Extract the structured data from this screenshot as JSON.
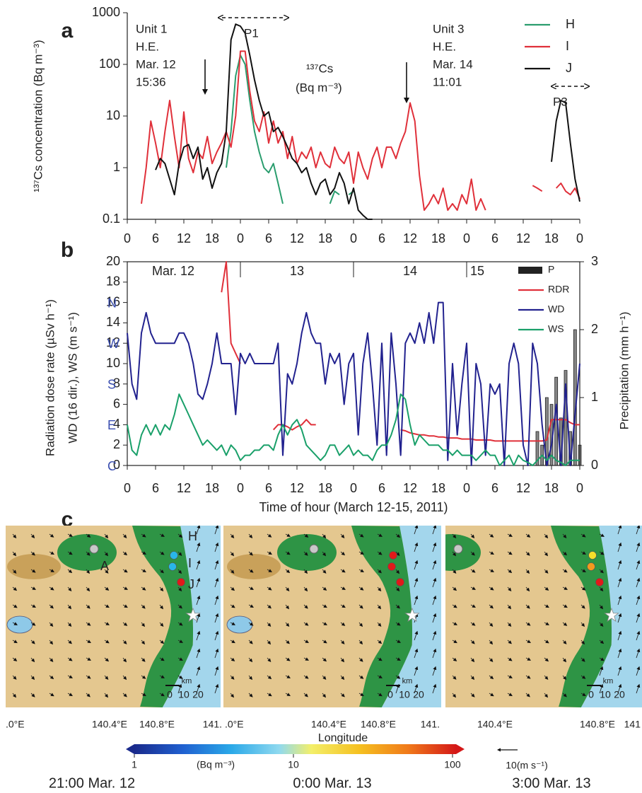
{
  "chart_data": [
    {
      "type": "line",
      "panel_label": "a",
      "y_label": "¹³⁷Cs concentration (Bq m⁻³)",
      "y_scale": "log",
      "frame": false,
      "ylim": [
        0.1,
        1000
      ],
      "yticks": [
        0.1,
        1,
        10,
        100,
        1000
      ],
      "xlim": [
        0,
        96
      ],
      "xticks": [
        0,
        6,
        12,
        18,
        {
          "value": 24,
          "label": "0"
        },
        {
          "value": 30,
          "label": "6"
        },
        {
          "value": 36,
          "label": "12"
        },
        {
          "value": 42,
          "label": "18"
        },
        {
          "value": 48,
          "label": "0"
        },
        {
          "value": 54,
          "label": "6"
        },
        {
          "value": 60,
          "label": "12"
        },
        {
          "value": 66,
          "label": "18"
        },
        {
          "value": 72,
          "label": "0"
        },
        {
          "value": 78,
          "label": "6"
        },
        {
          "value": 84,
          "label": "12"
        },
        {
          "value": 90,
          "label": "18"
        },
        {
          "value": 96,
          "label": "0"
        }
      ],
      "x": [
        0,
        1,
        2,
        3,
        4,
        5,
        6,
        7,
        8,
        9,
        10,
        11,
        12,
        13,
        14,
        15,
        16,
        17,
        18,
        19,
        20,
        21,
        22,
        23,
        24,
        25,
        26,
        27,
        28,
        29,
        30,
        31,
        32,
        33,
        34,
        35,
        36,
        37,
        38,
        39,
        40,
        41,
        42,
        43,
        44,
        45,
        46,
        47,
        48,
        49,
        50,
        51,
        52,
        53,
        54,
        55,
        56,
        57,
        58,
        59,
        60,
        61,
        62,
        63,
        64,
        65,
        66,
        67,
        68,
        69,
        70,
        71,
        72,
        73,
        74,
        75,
        76,
        77,
        78,
        79,
        80,
        81,
        82,
        83,
        84,
        85,
        86,
        87,
        88,
        89,
        90,
        91,
        92,
        93,
        94,
        95,
        96
      ],
      "legend": "upper right",
      "annotations": [
        "Unit 1",
        "H.E.",
        "Mar. 12",
        "15:36",
        "¹³⁷Cs",
        "(Bq m⁻³)",
        "Unit 3",
        "H.E.",
        "Mar. 14",
        "11:01",
        "P1",
        "P3"
      ],
      "series": [
        {
          "name": "H",
          "color": "#2a9d6e",
          "values": [
            null,
            null,
            null,
            null,
            null,
            null,
            null,
            null,
            null,
            null,
            null,
            null,
            null,
            null,
            null,
            null,
            null,
            null,
            null,
            null,
            null,
            1,
            5,
            60,
            150,
            100,
            20,
            5,
            2,
            1,
            0.8,
            1.2,
            0.5,
            0.2,
            null,
            null,
            null,
            null,
            null,
            null,
            null,
            null,
            null,
            0.2,
            0.35,
            0.3,
            null,
            0.3,
            0.35,
            null,
            null,
            null,
            null,
            null,
            null,
            null,
            null,
            null,
            null,
            null,
            null,
            null,
            null,
            null,
            null,
            null,
            null,
            null,
            null,
            null,
            null,
            null,
            null,
            null,
            null,
            null,
            null,
            null,
            null,
            null,
            null,
            null,
            null,
            null,
            null,
            null,
            null,
            null,
            null,
            null,
            null,
            null,
            null,
            null,
            null,
            null,
            null
          ]
        },
        {
          "name": "I",
          "color": "#e0303a",
          "values": [
            null,
            null,
            null,
            0.2,
            1,
            8,
            3,
            1,
            5,
            20,
            4,
            1,
            12,
            1.5,
            0.8,
            2,
            1.5,
            4,
            1.2,
            2,
            3,
            5,
            2.5,
            10,
            180,
            180,
            30,
            8,
            5,
            12,
            3,
            8,
            3,
            5,
            1.5,
            4,
            1.2,
            2,
            1.5,
            2.5,
            1,
            2,
            1.2,
            1,
            2.5,
            1.5,
            1.2,
            2,
            0.5,
            2,
            1,
            0.6,
            1.5,
            2.5,
            1,
            2.5,
            2.5,
            1.5,
            3,
            5,
            18,
            8,
            0.7,
            0.15,
            0.2,
            0.3,
            0.2,
            0.4,
            0.15,
            0.2,
            0.15,
            0.3,
            0.2,
            0.6,
            0.15,
            0.25,
            0.15,
            null,
            null,
            null,
            null,
            null,
            null,
            null,
            null,
            null,
            0.45,
            0.4,
            0.35,
            null,
            null,
            0.4,
            0.5,
            0.35,
            0.3,
            0.4,
            0.25
          ]
        },
        {
          "name": "J",
          "color": "#111111",
          "values": [
            null,
            null,
            null,
            null,
            null,
            null,
            0.9,
            1.5,
            1.2,
            0.6,
            0.3,
            1.2,
            2.5,
            2.8,
            1.5,
            2.5,
            0.6,
            1,
            0.4,
            0.8,
            1.2,
            5,
            300,
            600,
            550,
            400,
            150,
            50,
            20,
            10,
            12,
            5,
            6,
            4,
            2.5,
            1.5,
            1.2,
            0.8,
            1,
            0.5,
            0.3,
            0.5,
            0.6,
            0.3,
            0.4,
            0.8,
            0.5,
            0.2,
            0.4,
            0.15,
            0.12,
            0.1,
            0.1,
            null,
            null,
            null,
            null,
            null,
            null,
            null,
            null,
            null,
            null,
            null,
            null,
            null,
            null,
            null,
            null,
            null,
            null,
            null,
            null,
            null,
            null,
            null,
            null,
            null,
            null,
            null,
            null,
            null,
            null,
            null,
            null,
            null,
            null,
            null,
            null,
            null,
            1.3,
            8,
            20,
            18,
            3,
            0.6,
            0.22
          ]
        }
      ]
    },
    {
      "type": "line",
      "panel_label": "b",
      "frame": true,
      "y_label_lines": [
        "Radiation dose rate (µSv h⁻¹)",
        "WD (16 dir.), WS (m s⁻¹)"
      ],
      "y2_label": "Precipitation (mm h⁻¹)",
      "x_label": "Time of hour (March 12-15, 2011)",
      "ylim": [
        0,
        20
      ],
      "yticks": [
        0,
        2,
        4,
        6,
        8,
        10,
        12,
        14,
        16,
        18,
        20
      ],
      "y2lim": [
        0,
        3
      ],
      "y2ticks": [
        0,
        1,
        2,
        3
      ],
      "direction_labels": [
        {
          "value": 16,
          "label": "N"
        },
        {
          "value": 12,
          "label": "W"
        },
        {
          "value": 8,
          "label": "S"
        },
        {
          "value": 4,
          "label": "E"
        },
        {
          "value": 0,
          "label": "C"
        }
      ],
      "day_labels": [
        "Mar. 12",
        "13",
        "14",
        "15"
      ],
      "xlim": [
        0,
        96
      ],
      "xticks": [
        0,
        6,
        12,
        18,
        {
          "value": 24,
          "label": "0"
        },
        {
          "value": 30,
          "label": "6"
        },
        {
          "value": 36,
          "label": "12"
        },
        {
          "value": 42,
          "label": "18"
        },
        {
          "value": 48,
          "label": "0"
        },
        {
          "value": 54,
          "label": "6"
        },
        {
          "value": 60,
          "label": "12"
        },
        {
          "value": 66,
          "label": "18"
        },
        {
          "value": 72,
          "label": "0"
        },
        {
          "value": 78,
          "label": "6"
        },
        {
          "value": 84,
          "label": "12"
        },
        {
          "value": 90,
          "label": "18"
        },
        {
          "value": 96,
          "label": "0"
        }
      ],
      "x": [
        0,
        1,
        2,
        3,
        4,
        5,
        6,
        7,
        8,
        9,
        10,
        11,
        12,
        13,
        14,
        15,
        16,
        17,
        18,
        19,
        20,
        21,
        22,
        23,
        24,
        25,
        26,
        27,
        28,
        29,
        30,
        31,
        32,
        33,
        34,
        35,
        36,
        37,
        38,
        39,
        40,
        41,
        42,
        43,
        44,
        45,
        46,
        47,
        48,
        49,
        50,
        51,
        52,
        53,
        54,
        55,
        56,
        57,
        58,
        59,
        60,
        61,
        62,
        63,
        64,
        65,
        66,
        67,
        68,
        69,
        70,
        71,
        72,
        73,
        74,
        75,
        76,
        77,
        78,
        79,
        80,
        81,
        82,
        83,
        84,
        85,
        86,
        87,
        88,
        89,
        90,
        91,
        92,
        93,
        94,
        95,
        96
      ],
      "legend": "upper right",
      "series": [
        {
          "name": "P",
          "type": "bar",
          "axis": "y2",
          "color": "#222222",
          "values": [
            null,
            null,
            null,
            null,
            null,
            null,
            null,
            null,
            null,
            null,
            null,
            null,
            null,
            null,
            null,
            null,
            null,
            null,
            null,
            null,
            null,
            null,
            null,
            null,
            null,
            null,
            null,
            null,
            null,
            null,
            null,
            null,
            null,
            null,
            null,
            null,
            null,
            null,
            null,
            null,
            null,
            null,
            null,
            null,
            null,
            null,
            null,
            null,
            null,
            null,
            null,
            null,
            null,
            null,
            null,
            null,
            null,
            null,
            null,
            null,
            null,
            null,
            null,
            null,
            null,
            null,
            null,
            null,
            null,
            null,
            null,
            null,
            null,
            null,
            null,
            null,
            null,
            null,
            null,
            null,
            null,
            null,
            null,
            null,
            null,
            null,
            null,
            0.5,
            0.3,
            1,
            0.9,
            1.3,
            0.7,
            1.4,
            0.5,
            2,
            0.3
          ]
        },
        {
          "name": "RDR",
          "color": "#e0303a",
          "values": [
            null,
            null,
            null,
            null,
            null,
            null,
            null,
            null,
            null,
            null,
            null,
            null,
            null,
            null,
            null,
            null,
            null,
            null,
            null,
            null,
            17,
            20,
            12,
            11,
            10,
            null,
            null,
            null,
            null,
            null,
            null,
            3.5,
            4,
            4,
            3.8,
            3.5,
            3.8,
            4,
            4.5,
            4,
            4,
            null,
            null,
            null,
            null,
            null,
            null,
            null,
            null,
            null,
            null,
            null,
            null,
            null,
            null,
            null,
            null,
            null,
            3.5,
            3.4,
            3.2,
            3.1,
            3,
            3,
            2.9,
            2.9,
            2.8,
            2.8,
            2.7,
            2.7,
            2.7,
            2.6,
            2.6,
            2.6,
            2.5,
            2.5,
            2.5,
            2.5,
            2.4,
            2.4,
            2.4,
            2.4,
            2.4,
            2.4,
            2.4,
            2.4,
            2.4,
            2.4,
            2.4,
            2.5,
            4.5,
            4.5,
            4.5,
            4.5,
            4.2,
            4,
            4
          ]
        },
        {
          "name": "WD",
          "color": "#22228f",
          "values": [
            13,
            8,
            6.5,
            13,
            15,
            13,
            12,
            12,
            12,
            12,
            12,
            13,
            13,
            12,
            10,
            7,
            6.5,
            8,
            10,
            13,
            10,
            10,
            10,
            5,
            11,
            10,
            11,
            10,
            10,
            10,
            10,
            10,
            12,
            1,
            9,
            8,
            10,
            13,
            15,
            13,
            12,
            12,
            8,
            11,
            10,
            11,
            6,
            10,
            11,
            3,
            10,
            13,
            8,
            2,
            12,
            1,
            13,
            8,
            1,
            12,
            13,
            12,
            14,
            12,
            15,
            12,
            16,
            16,
            0.5,
            10,
            3,
            8,
            12,
            0,
            10,
            8,
            1,
            8,
            7,
            8,
            0,
            10,
            12,
            10,
            2,
            0,
            12,
            10,
            4,
            0,
            2,
            6,
            0,
            8,
            0,
            5,
            10
          ]
        },
        {
          "name": "WS",
          "color": "#1aa06a",
          "values": [
            4,
            1.5,
            1,
            3,
            4,
            3,
            4,
            3,
            4,
            3.5,
            5,
            7,
            6,
            5,
            4,
            3,
            2,
            2.5,
            2,
            1.5,
            2,
            1,
            2,
            1.5,
            0.5,
            1,
            1,
            1.5,
            1.5,
            2,
            2,
            1.5,
            3,
            4,
            3,
            4,
            4.5,
            3.5,
            2,
            1.5,
            1,
            0.5,
            1,
            2,
            2,
            1,
            1.5,
            2,
            1,
            1.5,
            1,
            1,
            0.5,
            1.5,
            2,
            2,
            3,
            4.5,
            7,
            6.5,
            4,
            2,
            3,
            2.5,
            2,
            2,
            2,
            1.5,
            1.5,
            1,
            1.5,
            1,
            1,
            1,
            0.5,
            1,
            1.5,
            1,
            1,
            0,
            0.5,
            1,
            0,
            1,
            0.5,
            0.3,
            0,
            0.5,
            1,
            0.5,
            1,
            0.5,
            0.3,
            0,
            0.5,
            0.5,
            0.5
          ]
        }
      ]
    }
  ],
  "maps": {
    "panel_label": "c",
    "station_labels": [
      "H",
      "I",
      "J",
      "A"
    ],
    "x_label": "Longitude",
    "scale_label": "km",
    "scale_ticks": [
      0,
      10,
      20
    ],
    "colorbar": {
      "scale": "log",
      "ticks": [
        1,
        10,
        100
      ],
      "unit": "(Bq m⁻³)"
    },
    "wind_reference": "10(m s⁻¹)",
    "panels": [
      {
        "time": "21:00 Mar. 12",
        "lon_labels": [
          ".0°E",
          "140.4°E",
          "140.8°E",
          "141."
        ],
        "station_colors": [
          "#29b6e8",
          "#29b6e8",
          "#e01a1a"
        ]
      },
      {
        "time": "0:00 Mar. 13",
        "lon_labels": [
          ".0°E",
          "140.4°E",
          "140.8°E",
          "141."
        ],
        "station_colors": [
          "#e01a1a",
          "#e01a1a",
          "#e01a1a"
        ]
      },
      {
        "time": "3:00 Mar. 13",
        "lon_labels": [
          "140.4°E",
          "140.8°E",
          "141"
        ],
        "station_colors": [
          "#f5e02a",
          "#f39a1e",
          "#e01a1a"
        ]
      }
    ]
  }
}
